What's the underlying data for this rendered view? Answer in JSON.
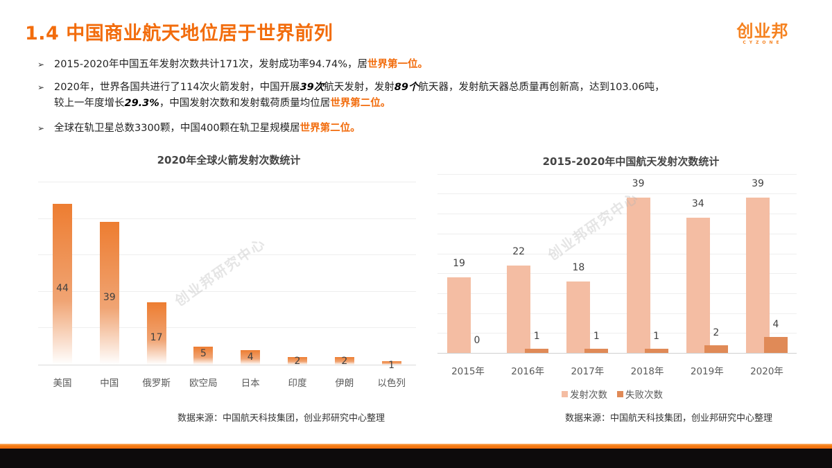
{
  "header": {
    "title": "1.4 中国商业航天地位居于世界前列",
    "logo_cn": "创业邦",
    "logo_en": "CYZONE"
  },
  "bullets": [
    {
      "parts": [
        {
          "text": "2015-2020年中国五年发射次数共计171次，发射成功率94.74%，居",
          "style": "normal"
        },
        {
          "text": "世界第一位。",
          "style": "highlight"
        }
      ]
    },
    {
      "line1": [
        {
          "text": "2020年，世界各国共进行了114次火箭发射，中国开展",
          "style": "normal"
        },
        {
          "text": "39次",
          "style": "emphasis"
        },
        {
          "text": "航天发射，发射",
          "style": "normal"
        },
        {
          "text": "89个",
          "style": "emphasis"
        },
        {
          "text": "航天器，发射航天器总质量再创新高，达到103.06吨，",
          "style": "normal"
        }
      ],
      "line2": [
        {
          "text": "较上一年度增长",
          "style": "normal"
        },
        {
          "text": "29.3%",
          "style": "emphasis"
        },
        {
          "text": "，中国发射次数和发射载荷质量均位居",
          "style": "normal"
        },
        {
          "text": "世界第二位。",
          "style": "highlight"
        }
      ]
    },
    {
      "parts": [
        {
          "text": "全球在轨卫星总数3300颗，中国400颗在轨卫星规模居",
          "style": "normal"
        },
        {
          "text": "世界第二位。",
          "style": "highlight"
        }
      ]
    }
  ],
  "watermark": "创业邦研究中心",
  "chart_data": [
    {
      "type": "bar",
      "title": "2020年全球火箭发射次数统计",
      "categories": [
        "美国",
        "中国",
        "俄罗斯",
        "欧空局",
        "日本",
        "印度",
        "伊朗",
        "以色列"
      ],
      "values": [
        44,
        39,
        17,
        5,
        4,
        2,
        2,
        1
      ],
      "xlabel": "",
      "ylabel": "",
      "ylim": [
        0,
        50
      ],
      "grid": true,
      "legend": null,
      "data_labels": true,
      "color": "#ed7d31",
      "source": "数据来源：中国航天科技集团，创业邦研究中心整理"
    },
    {
      "type": "bar",
      "title": "2015-2020年中国航天发射次数统计",
      "categories": [
        "2015年",
        "2016年",
        "2017年",
        "2018年",
        "2019年",
        "2020年"
      ],
      "series": [
        {
          "name": "发射次数",
          "values": [
            19,
            22,
            18,
            39,
            34,
            39
          ],
          "color": "#f4bda3"
        },
        {
          "name": "失败次数",
          "values": [
            0,
            1,
            1,
            1,
            2,
            4
          ],
          "color": "#e08a57"
        }
      ],
      "xlabel": "",
      "ylabel": "",
      "ylim": [
        0,
        45
      ],
      "grid": true,
      "legend_position": "bottom",
      "data_labels": true,
      "source": "数据来源：中国航天科技集团，创业邦研究中心整理"
    }
  ]
}
